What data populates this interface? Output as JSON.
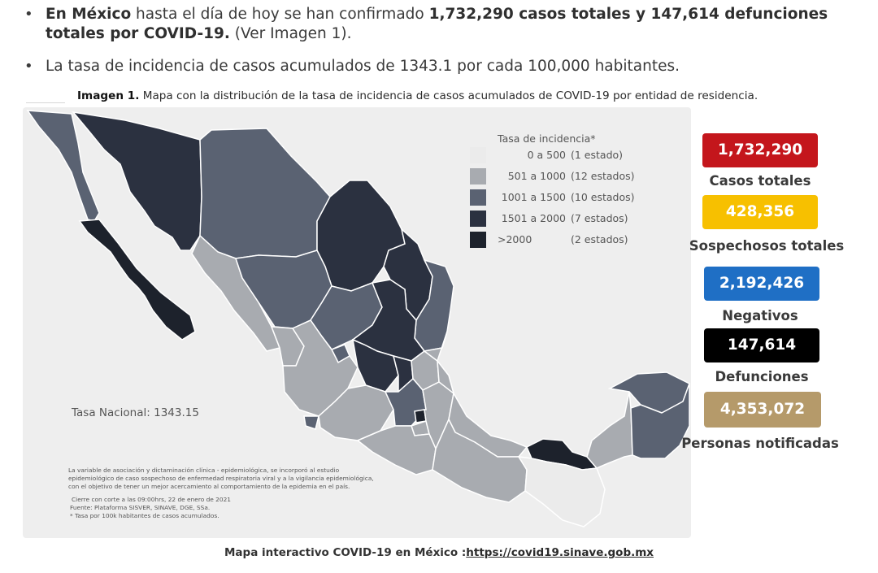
{
  "bullets": {
    "b1": {
      "pre_bold": "En México",
      "mid": " hasta el día de hoy se han confirmado ",
      "bold_cases": "1,732,290 casos totales y 147,614 defunciones totales por COVID-19.",
      "post": " (Ver Imagen 1)."
    },
    "b2": {
      "text": "La tasa de incidencia de casos acumulados de 1343.1 por cada 100,000 habitantes."
    }
  },
  "caption": {
    "label": "Imagen 1.",
    "text": " Mapa con la distribución de la tasa de incidencia de casos acumulados de COVID-19 por entidad de residencia."
  },
  "legend": {
    "title": "Tasa de incidencia*",
    "rows": [
      {
        "range": "0 a   500",
        "count": "(1 estado)",
        "color": "#ebebeb"
      },
      {
        "range": "501 a  1000",
        "count": "(12 estados)",
        "color": "#a8abb0"
      },
      {
        "range": "1001 a  1500",
        "count": "(10 estados)",
        "color": "#5a6272"
      },
      {
        "range": "1501 a  2000",
        "count": "(7 estados)",
        "color": "#2b3140"
      },
      {
        "range": ">2000",
        "count": "(2 estados)",
        "color": "#1d222c"
      }
    ]
  },
  "tasa_nacional": "Tasa Nacional: 1343.15",
  "notes": {
    "paragraph": [
      "La variable de asociación y dictaminación clínica - epidemiológica, se incorporó al estudio",
      "epidemiológico de caso sospechoso de enfermedad respiratoria viral y a la vigilancia epidemiológica,",
      "con el objetivo de tener un mejor acercamiento al comportamiento de la epidemia en el país."
    ],
    "cierre": "Cierre con corte a las 09:00hrs, 22 de enero de 2021",
    "fuente": "Fuente: Plataforma SISVER, SINAVE, DGE, SSa.",
    "tasa": "* Tasa por 100k habitantes de casos acumulados."
  },
  "stats": [
    {
      "value": "1,732,290",
      "label": "Casos totales",
      "color": "#c4161c"
    },
    {
      "value": "428,356",
      "label": "Sospechosos totales",
      "color": "#f7c000"
    },
    {
      "value": "2,192,426",
      "label": "Negativos",
      "color": "#1f6fc5"
    },
    {
      "value": "147,614",
      "label": "Defunciones",
      "color": "#000000"
    },
    {
      "value": "4,353,072",
      "label": "Personas notificadas",
      "color": "#b59a6a"
    }
  ],
  "footer": {
    "label": "Mapa interactivo COVID-19 en México :",
    "link": "https://covid19.sinave.gob.mx"
  },
  "colors": {
    "light": "#ebebeb",
    "gray": "#a8abb0",
    "mid": "#5a6272",
    "dark": "#2b3140",
    "darkest": "#1d222c"
  }
}
